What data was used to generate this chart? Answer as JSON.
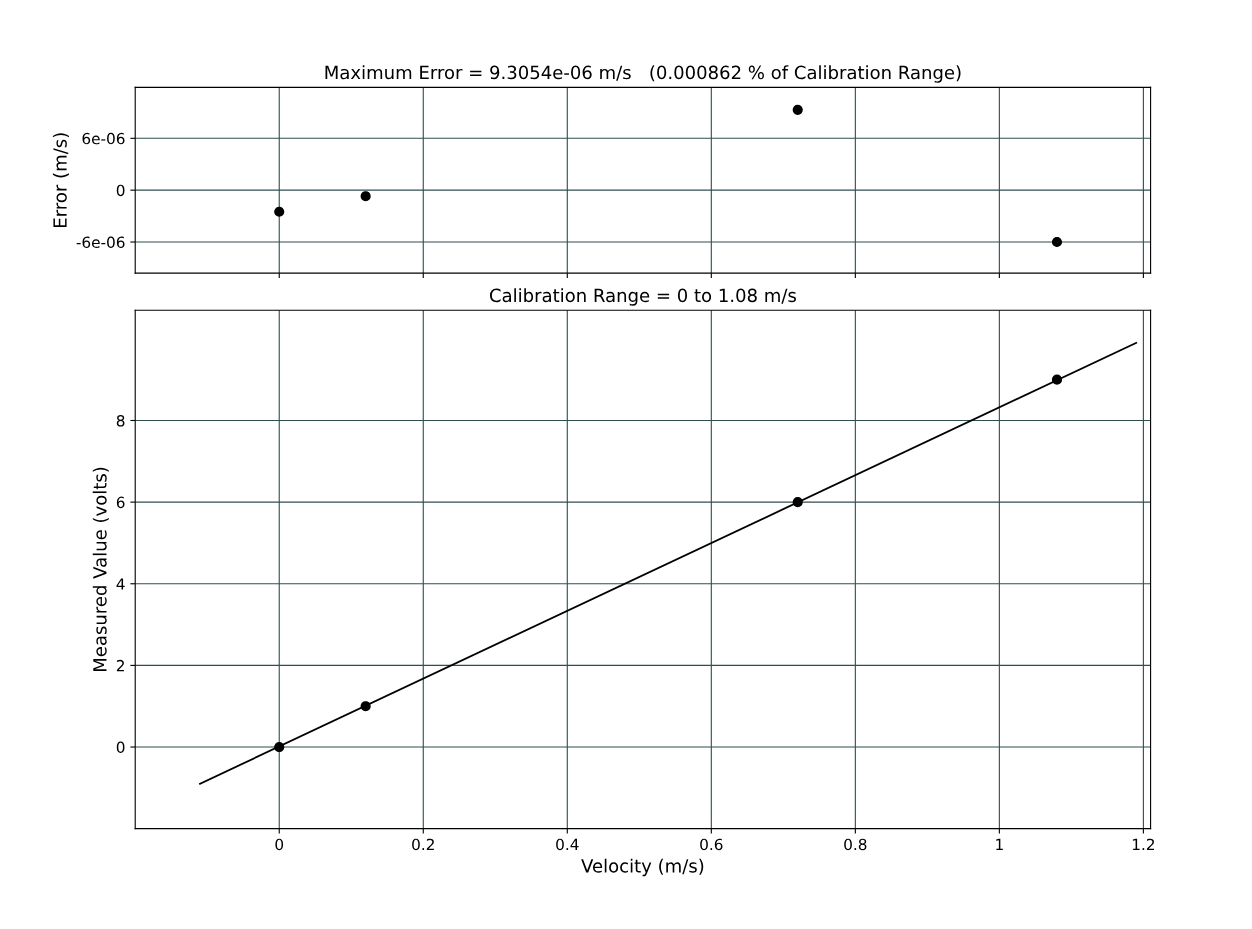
{
  "chart_data": [
    {
      "type": "scatter",
      "title": "Maximum Error = 9.3054e-06 m/s   (0.000862 % of Calibration Range)",
      "ylabel": "Error (m/s)",
      "series": [
        {
          "color": "#000000",
          "x": [
            0,
            0.12,
            0.72,
            1.08
          ],
          "values": [
            -2.5e-06,
            -7e-07,
            9.3e-06,
            -6e-06
          ]
        }
      ],
      "xlim": [
        -0.2,
        1.21
      ],
      "xticks": [
        0,
        0.2,
        0.4,
        0.6,
        0.8,
        1,
        1.2
      ],
      "ylim": [
        -9.6e-06,
        1.19e-05
      ],
      "yticks": [
        {
          "value": -6e-06,
          "label": "-6e-06"
        },
        0,
        {
          "value": 6e-06,
          "label": "6e-06"
        }
      ],
      "tick_labels": "y",
      "grid": true
    },
    {
      "type": "scatter",
      "title": "Calibration Range = 0 to 1.08 m/s",
      "xlabel": "Velocity (m/s)",
      "ylabel": "Measured Value (volts)",
      "series": [
        {
          "color": "#000000",
          "x": [
            0,
            0.12,
            0.72,
            1.08
          ],
          "values": [
            0,
            1,
            6,
            9
          ]
        },
        {
          "type": "line",
          "color": "#000000",
          "x": [
            -0.11,
            1.19
          ],
          "values": [
            -0.9,
            9.9
          ]
        }
      ],
      "xlim": [
        -0.2,
        1.21
      ],
      "xticks": [
        0,
        0.2,
        0.4,
        0.6,
        0.8,
        1,
        1.2
      ],
      "ylim": [
        -2,
        10.7
      ],
      "yticks": [
        0,
        2,
        4,
        6,
        8
      ],
      "grid": true
    }
  ]
}
